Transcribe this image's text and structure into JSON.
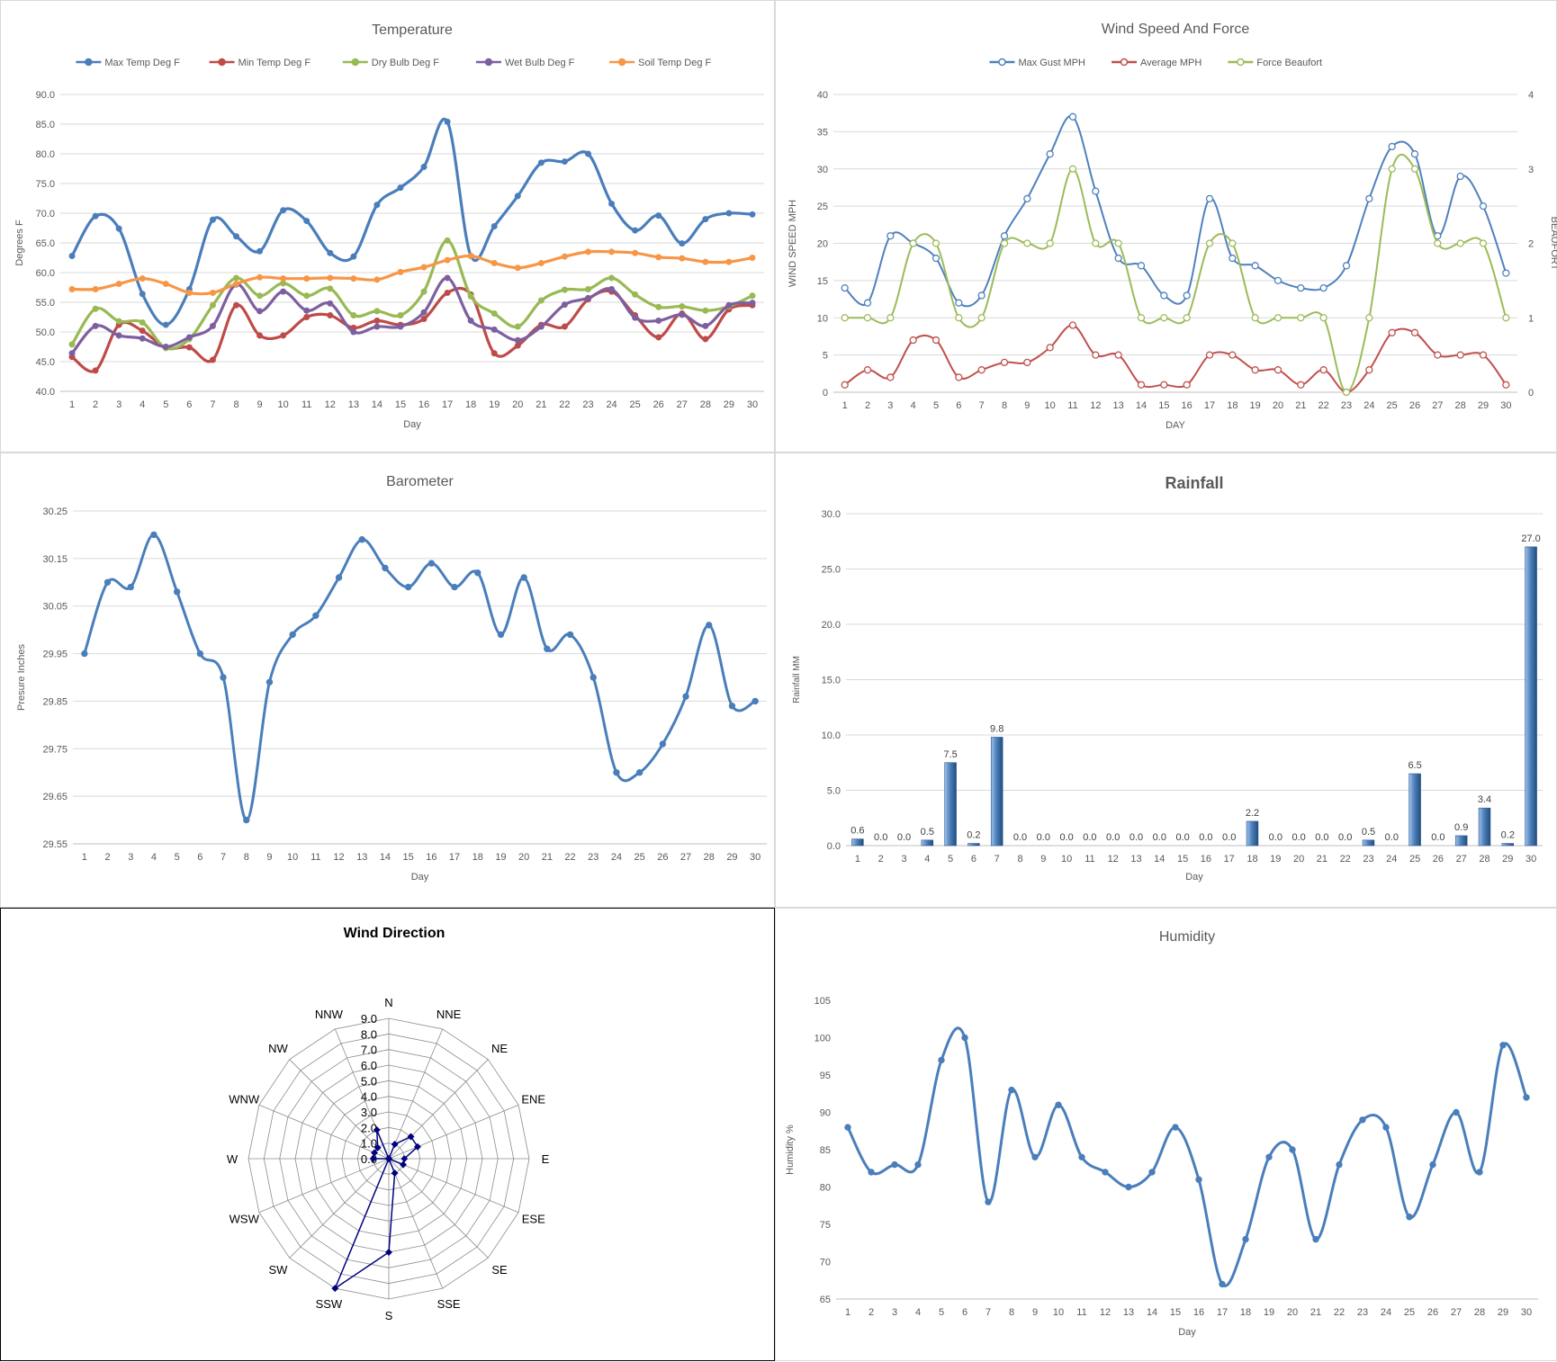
{
  "chart_data": [
    {
      "id": "temperature",
      "type": "line",
      "title": "Temperature",
      "xlabel": "Day",
      "ylabel": "Degrees F",
      "ylim": [
        40,
        90
      ],
      "ystep": 5,
      "ydecimals": 1,
      "categories": [
        "1",
        "2",
        "3",
        "4",
        "5",
        "6",
        "7",
        "8",
        "9",
        "10",
        "11",
        "12",
        "13",
        "14",
        "15",
        "16",
        "17",
        "18",
        "19",
        "20",
        "21",
        "22",
        "23",
        "24",
        "25",
        "26",
        "27",
        "28",
        "29",
        "30"
      ],
      "grid": true,
      "legend": "top",
      "series": [
        {
          "name": "Max Temp Deg F",
          "color": "#4a7ebb",
          "values": [
            62.8,
            69.5,
            67.4,
            56.4,
            51.2,
            57.2,
            68.9,
            66.1,
            63.6,
            70.5,
            68.7,
            63.3,
            62.7,
            71.4,
            74.3,
            77.8,
            85.4,
            62.8,
            67.8,
            72.9,
            78.5,
            78.7,
            80.0,
            71.6,
            67.1,
            69.6,
            64.9,
            69.0,
            70.0,
            69.8
          ]
        },
        {
          "name": "Min Temp Deg F",
          "color": "#be4b48",
          "values": [
            45.8,
            43.5,
            51.2,
            50.2,
            47.3,
            47.4,
            45.3,
            54.5,
            49.4,
            49.4,
            52.5,
            52.8,
            50.7,
            51.9,
            51.2,
            52.2,
            56.6,
            56.3,
            46.4,
            47.7,
            51.2,
            50.9,
            55.5,
            56.8,
            52.8,
            49.1,
            53.1,
            48.8,
            53.8,
            54.5
          ]
        },
        {
          "name": "Dry Bulb Deg F",
          "color": "#98b954",
          "values": [
            47.9,
            53.9,
            51.8,
            51.6,
            47.3,
            48.8,
            54.5,
            59.1,
            56.1,
            58.2,
            56.1,
            57.3,
            52.8,
            53.5,
            52.8,
            56.8,
            65.4,
            56.0,
            53.1,
            50.9,
            55.3,
            57.1,
            57.2,
            59.1,
            56.3,
            54.2,
            54.3,
            53.6,
            54.3,
            56.1
          ]
        },
        {
          "name": "Wet Bulb Deg F",
          "color": "#7d5fa0",
          "values": [
            46.4,
            51.0,
            49.4,
            48.9,
            47.5,
            49.1,
            51.0,
            58.0,
            53.5,
            56.8,
            53.6,
            54.8,
            50.0,
            50.9,
            50.9,
            53.3,
            59.1,
            51.9,
            50.4,
            48.6,
            50.9,
            54.6,
            55.7,
            57.2,
            52.4,
            51.9,
            52.9,
            51.0,
            54.5,
            54.9
          ]
        },
        {
          "name": "Soil Temp Deg F",
          "color": "#f79646",
          "values": [
            57.2,
            57.2,
            58.1,
            59.0,
            58.1,
            56.6,
            56.6,
            58.1,
            59.2,
            59.0,
            59.0,
            59.1,
            59.0,
            58.8,
            60.1,
            60.9,
            62.1,
            62.8,
            61.6,
            60.8,
            61.6,
            62.7,
            63.5,
            63.5,
            63.3,
            62.6,
            62.4,
            61.8,
            61.8,
            62.5
          ]
        }
      ]
    },
    {
      "id": "wind-speed",
      "type": "line",
      "title": "Wind Speed And Force",
      "xlabel": "DAY",
      "ylabel": "WIND SPEED MPH",
      "y2label": "BEAUFORT",
      "ylim": [
        0,
        40
      ],
      "ystep": 5,
      "y2lim": [
        0,
        4
      ],
      "y2step": 1,
      "categories": [
        "1",
        "2",
        "3",
        "4",
        "5",
        "6",
        "7",
        "8",
        "9",
        "10",
        "11",
        "12",
        "13",
        "14",
        "15",
        "16",
        "17",
        "18",
        "19",
        "20",
        "21",
        "22",
        "23",
        "24",
        "25",
        "26",
        "27",
        "28",
        "29",
        "30"
      ],
      "grid": true,
      "legend": "top",
      "series": [
        {
          "name": "Max Gust MPH",
          "color": "#4f81bd",
          "axis": "left",
          "values": [
            14,
            12,
            21,
            20,
            18,
            12,
            13,
            21,
            26,
            32,
            37,
            27,
            18,
            17,
            13,
            13,
            26,
            18,
            17,
            15,
            14,
            14,
            17,
            26,
            33,
            32,
            21,
            29,
            25,
            16
          ]
        },
        {
          "name": "Average MPH",
          "color": "#c0504d",
          "axis": "left",
          "values": [
            1,
            3,
            2,
            7,
            7,
            2,
            3,
            4,
            4,
            6,
            9,
            5,
            5,
            1,
            1,
            1,
            5,
            5,
            3,
            3,
            1,
            3,
            0,
            3,
            8,
            8,
            5,
            5,
            5,
            1
          ]
        },
        {
          "name": "Force Beaufort",
          "color": "#9bbb59",
          "axis": "right",
          "values": [
            1,
            1,
            1,
            2,
            2,
            1,
            1,
            2,
            2,
            2,
            3,
            2,
            2,
            1,
            1,
            1,
            2,
            2,
            1,
            1,
            1,
            1,
            0,
            1,
            3,
            3,
            2,
            2,
            2,
            1
          ]
        }
      ]
    },
    {
      "id": "barometer",
      "type": "line",
      "title": "Barometer",
      "xlabel": "Day",
      "ylabel": "Presure Inches",
      "ylim": [
        29.55,
        30.25
      ],
      "ystep": 0.1,
      "ydecimals": 2,
      "categories": [
        "1",
        "2",
        "3",
        "4",
        "5",
        "6",
        "7",
        "8",
        "9",
        "10",
        "11",
        "12",
        "13",
        "14",
        "15",
        "16",
        "17",
        "18",
        "19",
        "20",
        "21",
        "22",
        "23",
        "24",
        "25",
        "26",
        "27",
        "28",
        "29",
        "30"
      ],
      "grid": true,
      "series": [
        {
          "name": "",
          "color": "#4a7ebb",
          "values": [
            29.95,
            30.1,
            30.09,
            30.2,
            30.08,
            29.95,
            29.9,
            29.6,
            29.89,
            29.99,
            30.03,
            30.11,
            30.19,
            30.13,
            30.09,
            30.14,
            30.09,
            30.12,
            29.99,
            30.11,
            29.96,
            29.99,
            29.9,
            29.7,
            29.7,
            29.76,
            29.86,
            30.01,
            29.84,
            29.85
          ]
        }
      ]
    },
    {
      "id": "rainfall",
      "type": "bar",
      "title": "Rainfall",
      "xlabel": "Day",
      "ylabel": "Rainfall MM",
      "ylim": [
        0,
        30
      ],
      "ystep": 5,
      "ydecimals": 1,
      "categories": [
        "1",
        "2",
        "3",
        "4",
        "5",
        "6",
        "7",
        "8",
        "9",
        "10",
        "11",
        "12",
        "13",
        "14",
        "15",
        "16",
        "17",
        "18",
        "19",
        "20",
        "21",
        "22",
        "23",
        "24",
        "25",
        "26",
        "27",
        "28",
        "29",
        "30"
      ],
      "grid": true,
      "data_labels": [
        "0.6",
        "0.0",
        "0.0",
        "0.5",
        "7.5",
        "0.2",
        "9.8",
        "0.0",
        "0.0",
        "0.0",
        "0.0",
        "0.0",
        "0.0",
        "0.0",
        "0.0",
        "0.0",
        "0.0",
        "2.2",
        "0.0",
        "0.0",
        "0.0",
        "0.0",
        "0.5",
        "0.0",
        "6.5",
        "0.0",
        "0.9",
        "3.4",
        "0.2",
        "27.0"
      ],
      "values": [
        0.6,
        0.0,
        0.0,
        0.5,
        7.5,
        0.2,
        9.8,
        0.0,
        0.0,
        0.0,
        0.0,
        0.0,
        0.0,
        0.0,
        0.0,
        0.0,
        0.0,
        2.2,
        0.0,
        0.0,
        0.0,
        0.0,
        0.5,
        0.0,
        6.5,
        0.0,
        0.9,
        3.4,
        0.2,
        27.0
      ],
      "color": "#4f81bd"
    },
    {
      "id": "wind-direction",
      "type": "radar",
      "title": "Wind Direction",
      "directions": [
        "N",
        "NNE",
        "NE",
        "ENE",
        "E",
        "ESE",
        "SE",
        "SSE",
        "S",
        "SSW",
        "SW",
        "WSW",
        "W",
        "WNW",
        "NW",
        "NNW"
      ],
      "rlim": [
        0,
        9
      ],
      "rstep": 1,
      "rdecimals": 1,
      "values": [
        0,
        1,
        2,
        2,
        1,
        1,
        0,
        1,
        6,
        9,
        0,
        0,
        1,
        1,
        1,
        2
      ],
      "color": "#000080"
    },
    {
      "id": "humidity",
      "type": "line",
      "title": "Humidity",
      "xlabel": "Day",
      "ylabel": "Humidity %",
      "ylim": [
        65,
        105
      ],
      "ystep": 5,
      "ydecimals": 0,
      "categories": [
        "1",
        "2",
        "3",
        "4",
        "5",
        "6",
        "7",
        "8",
        "9",
        "10",
        "11",
        "12",
        "13",
        "14",
        "15",
        "16",
        "17",
        "18",
        "19",
        "20",
        "21",
        "22",
        "23",
        "24",
        "25",
        "26",
        "27",
        "28",
        "29",
        "30"
      ],
      "grid": false,
      "series": [
        {
          "name": "",
          "color": "#4a7ebb",
          "values": [
            88,
            82,
            83,
            83,
            97,
            100,
            78,
            93,
            84,
            91,
            84,
            82,
            80,
            82,
            88,
            81,
            67,
            73,
            84,
            85,
            73,
            83,
            89,
            88,
            76,
            83,
            90,
            82,
            99,
            92
          ]
        }
      ]
    }
  ]
}
